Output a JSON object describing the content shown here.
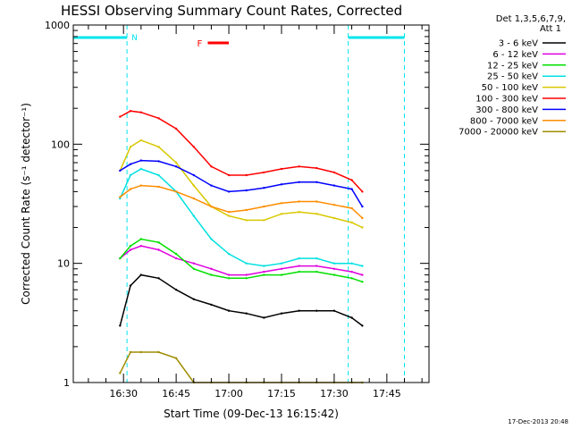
{
  "header": {
    "title": "HESSI Observing Summary Count Rates, Corrected"
  },
  "legend": {
    "heading": [
      "Det 1,3,5,6,7,9,",
      "Att 1"
    ],
    "placement": "right"
  },
  "footer": {
    "timestamp": "17-Dec-2013 20:48"
  },
  "colors": {
    "axes": "#000000",
    "background": "#ffffff",
    "night": "#00e5ee",
    "flare": "#ff0000"
  },
  "chart_data": {
    "type": "line",
    "title": "HESSI Observing Summary Count Rates, Corrected",
    "xlabel": "Start Time (09-Dec-13 16:15:42)",
    "ylabel": "Corrected Count Rate (s⁻¹ detector⁻¹)",
    "yscale": "log",
    "ylim": [
      1,
      1000
    ],
    "xlim": [
      "16:15:42",
      "17:57"
    ],
    "x_ticks": [
      "16:30",
      "16:45",
      "17:00",
      "17:15",
      "17:30",
      "17:45"
    ],
    "y_ticks": [
      "1",
      "10",
      "100",
      "1000"
    ],
    "grid": false,
    "bands": [
      {
        "label": "N",
        "type": "night",
        "start": "16:15:42",
        "end": "16:31"
      },
      {
        "label": "",
        "type": "night",
        "start": "17:34",
        "end": "17:50"
      },
      {
        "label": "F",
        "type": "flare",
        "start": "16:54",
        "end": "17:00"
      }
    ],
    "x": [
      "16:29",
      "16:32",
      "16:35",
      "16:40",
      "16:45",
      "16:50",
      "16:55",
      "17:00",
      "17:05",
      "17:10",
      "17:15",
      "17:20",
      "17:25",
      "17:30",
      "17:35",
      "17:38"
    ],
    "series": [
      {
        "name": "3 - 6 keV",
        "color": "#000000",
        "values": [
          3,
          6.5,
          8,
          7.5,
          6,
          5,
          4.5,
          4,
          3.8,
          3.5,
          3.8,
          4,
          4,
          4,
          3.5,
          3
        ]
      },
      {
        "name": "6 - 12 keV",
        "color": "#e000e0",
        "values": [
          11,
          13,
          14,
          13,
          11,
          10,
          9,
          8,
          8,
          8.5,
          9,
          9.5,
          9.5,
          9,
          8.5,
          8
        ]
      },
      {
        "name": "12 - 25 keV",
        "color": "#00e000",
        "values": [
          11,
          14,
          16,
          15,
          12,
          9,
          8,
          7.5,
          7.5,
          8,
          8,
          8.5,
          8.5,
          8,
          7.5,
          7
        ]
      },
      {
        "name": "25 - 50 keV",
        "color": "#00e0e0",
        "values": [
          35,
          55,
          62,
          55,
          40,
          25,
          16,
          12,
          10,
          9.5,
          10,
          11,
          11,
          10,
          10,
          9.5
        ]
      },
      {
        "name": "50 - 100 keV",
        "color": "#d8c800",
        "values": [
          60,
          95,
          108,
          95,
          70,
          45,
          30,
          25,
          23,
          23,
          26,
          27,
          26,
          24,
          22,
          20
        ]
      },
      {
        "name": "100 - 300 keV",
        "color": "#ff0000",
        "values": [
          170,
          190,
          185,
          165,
          135,
          95,
          65,
          55,
          55,
          58,
          62,
          65,
          63,
          58,
          50,
          40
        ]
      },
      {
        "name": "300 - 800 keV",
        "color": "#0000ff",
        "values": [
          60,
          68,
          73,
          72,
          65,
          55,
          45,
          40,
          41,
          43,
          46,
          48,
          48,
          45,
          42,
          30
        ]
      },
      {
        "name": "800 - 7000 keV",
        "color": "#ff8c00",
        "values": [
          36,
          42,
          45,
          44,
          40,
          35,
          30,
          27,
          28,
          30,
          32,
          33,
          33,
          31,
          29,
          24
        ]
      },
      {
        "name": "7000 - 20000 keV",
        "color": "#a08c00",
        "values": [
          1.2,
          1.8,
          1.8,
          1.8,
          1.6,
          1,
          1,
          1,
          1,
          1,
          1,
          1,
          1,
          1,
          1,
          1
        ]
      }
    ]
  }
}
